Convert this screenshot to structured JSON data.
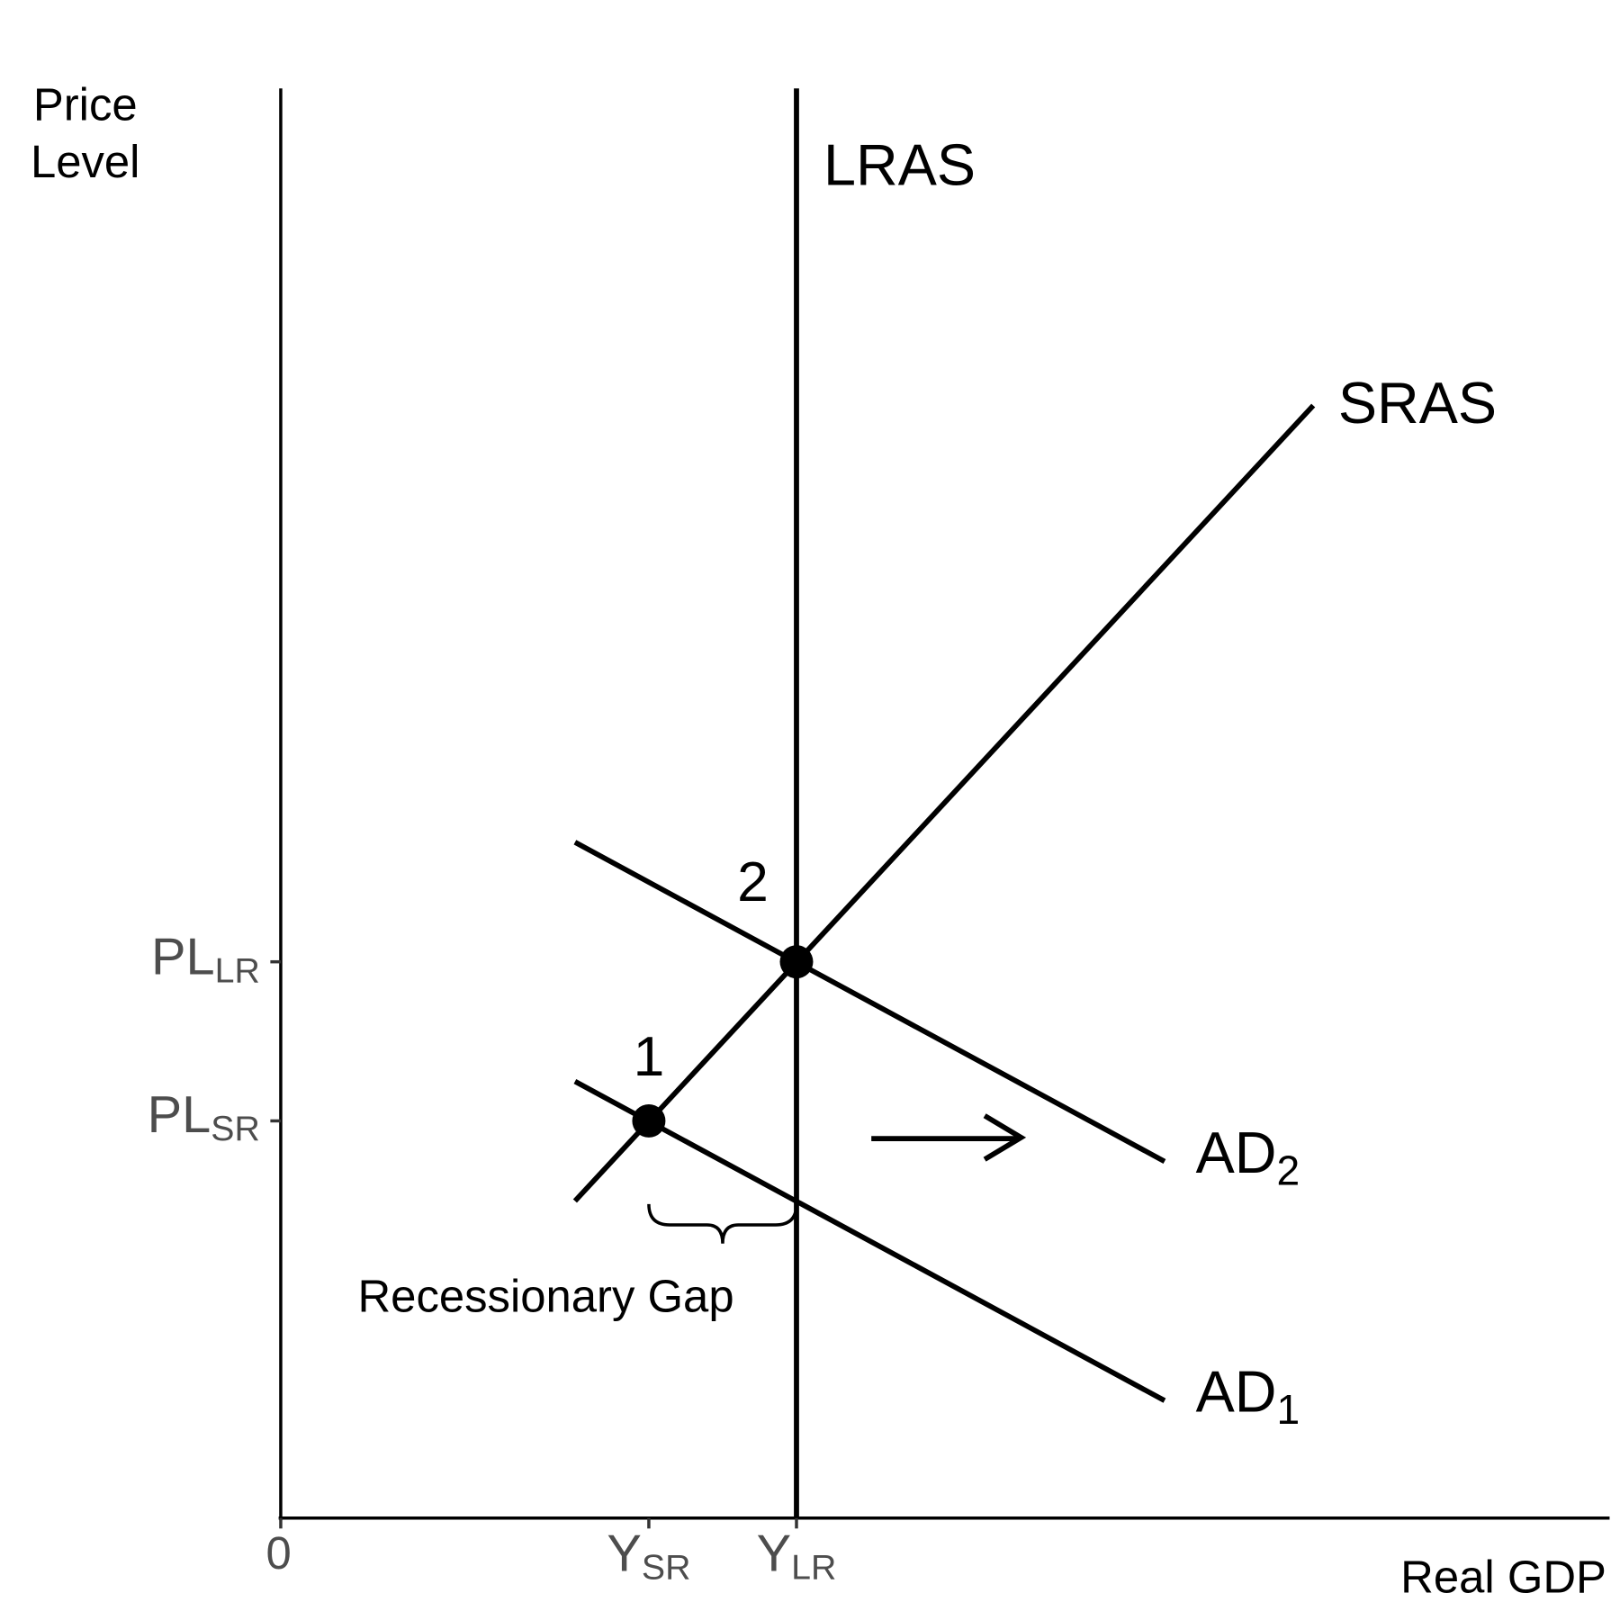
{
  "axes": {
    "y_label_lines": [
      "Price",
      "Level"
    ],
    "x_label": "Real GDP",
    "origin": "0"
  },
  "y_ticks": [
    {
      "main": "PL",
      "sub": "LR"
    },
    {
      "main": "PL",
      "sub": "SR"
    }
  ],
  "x_ticks": [
    {
      "main": "Y",
      "sub": "SR"
    },
    {
      "main": "Y",
      "sub": "LR"
    }
  ],
  "curves": {
    "lras": "LRAS",
    "sras": "SRAS",
    "ad2": {
      "main": "AD",
      "sub": "2"
    },
    "ad1": {
      "main": "AD",
      "sub": "1"
    }
  },
  "points": [
    "1",
    "2"
  ],
  "annotation": "Recessionary Gap"
}
